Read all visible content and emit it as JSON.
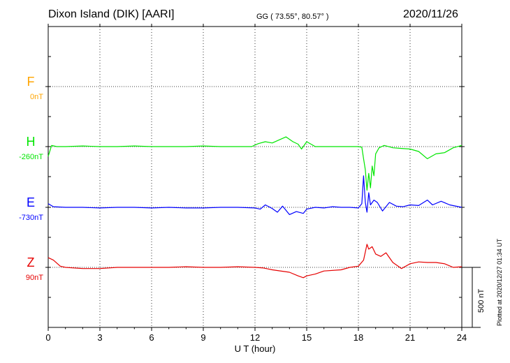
{
  "header": {
    "station": "Dixon Island (DIK)  [AARI]",
    "coords": "GG ( 73.55°,  80.57° )",
    "date": "2020/11/26"
  },
  "footer": {
    "plotted": "Plotted at 2020/12/27 01:34 UT"
  },
  "chart_data": {
    "type": "line",
    "title": "Dixon Island (DIK)  [AARI]",
    "xlabel": "U T (hour)",
    "ylabel": "",
    "xlim": [
      0,
      24
    ],
    "xticks": [
      0,
      3,
      6,
      9,
      12,
      15,
      18,
      21,
      24
    ],
    "grid": true,
    "scale_bar": "500 nT",
    "series": [
      {
        "name": "F",
        "baseline": "0nT",
        "color": "#ffa500",
        "x": [],
        "y": []
      },
      {
        "name": "H",
        "baseline": "-260nT",
        "color": "#00e600",
        "x": [
          0,
          0.2,
          0.5,
          1,
          2,
          3,
          4,
          5,
          6,
          7,
          8,
          9,
          10,
          11,
          11.8,
          12.2,
          12.6,
          13,
          13.4,
          13.8,
          14.2,
          14.5,
          14.7,
          15,
          15.5,
          16,
          17,
          18,
          18.2,
          18.3,
          18.4,
          18.5,
          18.6,
          18.7,
          18.8,
          18.9,
          19,
          19.2,
          19.5,
          20,
          20.5,
          21,
          21.5,
          22,
          22.5,
          23,
          23.5,
          24
        ],
        "y": [
          -80,
          10,
          0,
          0,
          5,
          0,
          0,
          5,
          0,
          0,
          0,
          5,
          0,
          0,
          0,
          25,
          40,
          30,
          55,
          80,
          40,
          20,
          -20,
          40,
          0,
          0,
          0,
          0,
          -5,
          -100,
          -190,
          -360,
          -220,
          -340,
          -160,
          -240,
          -60,
          -10,
          10,
          -10,
          -15,
          -20,
          -40,
          -100,
          -60,
          -50,
          -10,
          10
        ]
      },
      {
        "name": "E",
        "baseline": "-730nT",
        "color": "#0000ff",
        "x": [
          0,
          0.3,
          1,
          2,
          3,
          4,
          5,
          6,
          7,
          8,
          9,
          10,
          11,
          12,
          12.3,
          12.6,
          13,
          13.3,
          13.6,
          14,
          14.4,
          14.8,
          15,
          15.5,
          16,
          16.5,
          17,
          17.5,
          18,
          18.2,
          18.3,
          18.4,
          18.5,
          18.6,
          18.7,
          18.9,
          19.1,
          19.4,
          19.8,
          20.2,
          20.6,
          21,
          21.5,
          22,
          22.3,
          22.8,
          23.3,
          24
        ],
        "y": [
          30,
          5,
          0,
          0,
          -5,
          0,
          0,
          -5,
          0,
          -5,
          -5,
          0,
          0,
          -5,
          -15,
          20,
          -10,
          -40,
          10,
          -60,
          -35,
          -50,
          -15,
          0,
          -5,
          5,
          0,
          0,
          -5,
          30,
          260,
          40,
          -40,
          120,
          20,
          60,
          40,
          -30,
          40,
          10,
          5,
          20,
          15,
          60,
          20,
          50,
          20,
          0
        ]
      },
      {
        "name": "Z",
        "baseline": "90nT",
        "color": "#e60000",
        "x": [
          0,
          0.3,
          0.7,
          1,
          2,
          3,
          4,
          5,
          6,
          7,
          8,
          9,
          10,
          11,
          12,
          12.5,
          13,
          14,
          14.5,
          14.8,
          15,
          15.5,
          16,
          17,
          17.5,
          18,
          18.3,
          18.5,
          18.6,
          18.8,
          19,
          19.3,
          19.6,
          20,
          20.5,
          21,
          21.5,
          22,
          22.5,
          23,
          23.5,
          24
        ],
        "y": [
          80,
          60,
          10,
          0,
          -10,
          -10,
          0,
          0,
          0,
          0,
          5,
          0,
          0,
          5,
          0,
          -5,
          -20,
          -40,
          -70,
          -85,
          -70,
          -55,
          -30,
          -20,
          0,
          10,
          60,
          190,
          150,
          170,
          110,
          90,
          120,
          40,
          -10,
          30,
          45,
          40,
          40,
          30,
          0,
          5
        ]
      }
    ]
  },
  "axes": {
    "xlabel": "U T (hour)",
    "xtick_labels": [
      "0",
      "3",
      "6",
      "9",
      "12",
      "15",
      "18",
      "21",
      "24"
    ],
    "scale_label": "500 nT"
  }
}
